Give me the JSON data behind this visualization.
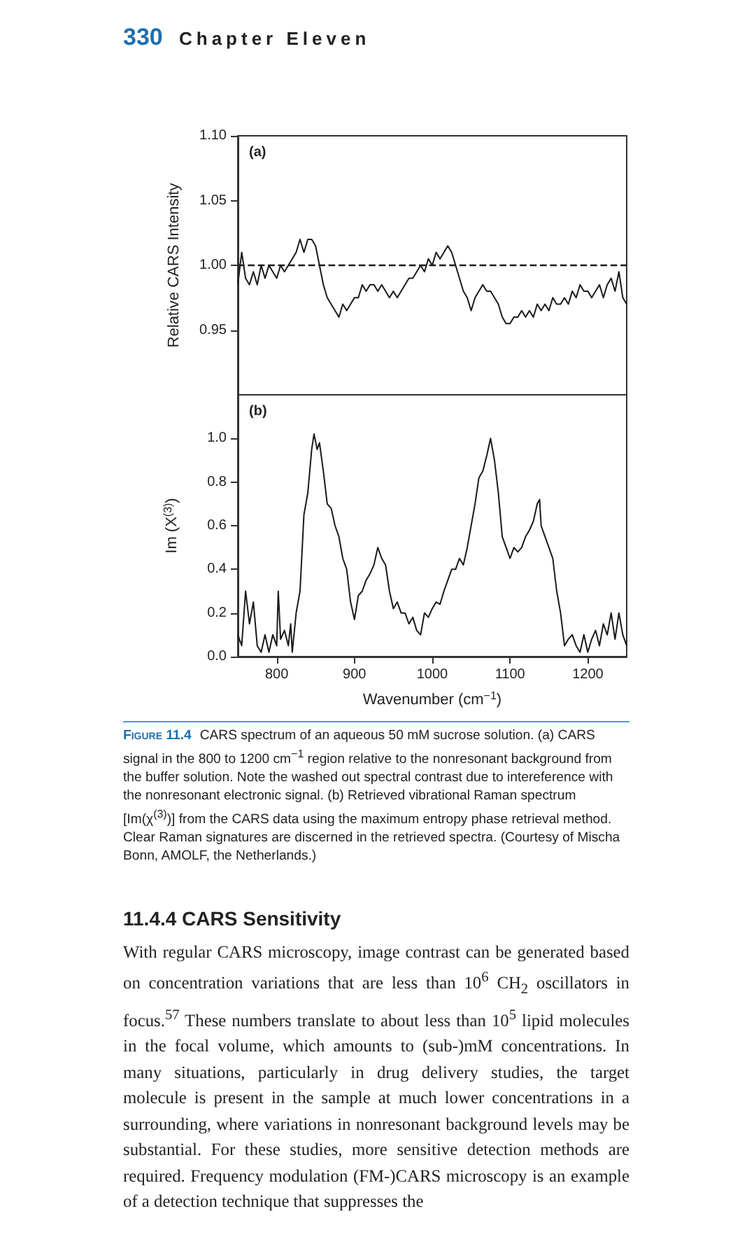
{
  "chart_data": [
    {
      "type": "line",
      "ylabel": "Relative CARS Intensity",
      "marker": "none",
      "color": "#1a1a1a",
      "tick_labels": "y",
      "annotations": [
        "(a)",
        "330",
        "Chapter Eleven"
      ],
      "xlim": [
        750,
        1250
      ],
      "xticks": [
        800,
        900,
        1000,
        1100,
        1200
      ],
      "ylim": [
        0.9,
        1.1
      ],
      "yticks": [
        0.95,
        {
          "value": 1,
          "label": "1.00"
        },
        1.05,
        {
          "value": 1.1,
          "label": "1.10"
        }
      ],
      "ref_lines": [
        {
          "axis": "y",
          "value": 1,
          "line_style": "dashed",
          "color": "#1a1a1a"
        }
      ],
      "x": [
        750,
        755,
        760,
        765,
        770,
        775,
        780,
        785,
        790,
        795,
        800,
        805,
        810,
        815,
        820,
        825,
        830,
        835,
        840,
        845,
        850,
        855,
        860,
        865,
        870,
        875,
        880,
        885,
        890,
        895,
        900,
        905,
        910,
        915,
        920,
        925,
        930,
        935,
        940,
        945,
        950,
        955,
        960,
        965,
        970,
        975,
        980,
        985,
        990,
        995,
        1000,
        1005,
        1010,
        1015,
        1020,
        1025,
        1030,
        1035,
        1040,
        1045,
        1050,
        1055,
        1060,
        1065,
        1070,
        1075,
        1080,
        1085,
        1090,
        1095,
        1100,
        1105,
        1110,
        1115,
        1120,
        1125,
        1130,
        1135,
        1140,
        1145,
        1150,
        1155,
        1160,
        1165,
        1170,
        1175,
        1180,
        1185,
        1190,
        1195,
        1200,
        1205,
        1210,
        1215,
        1220,
        1225,
        1230,
        1235,
        1240,
        1245,
        1250
      ],
      "values": [
        0.985,
        1.01,
        0.99,
        0.985,
        0.995,
        0.985,
        1.0,
        0.99,
        1.0,
        0.995,
        0.99,
        1.0,
        0.995,
        1.0,
        1.005,
        1.01,
        1.02,
        1.01,
        1.02,
        1.02,
        1.015,
        1.0,
        0.985,
        0.975,
        0.97,
        0.965,
        0.96,
        0.97,
        0.965,
        0.97,
        0.975,
        0.975,
        0.985,
        0.98,
        0.985,
        0.985,
        0.98,
        0.985,
        0.98,
        0.975,
        0.98,
        0.975,
        0.98,
        0.985,
        0.99,
        0.99,
        0.995,
        1.0,
        0.995,
        1.005,
        1.0,
        1.01,
        1.005,
        1.01,
        1.015,
        1.01,
        1.0,
        0.99,
        0.98,
        0.975,
        0.965,
        0.975,
        0.98,
        0.985,
        0.98,
        0.98,
        0.975,
        0.97,
        0.96,
        0.955,
        0.955,
        0.96,
        0.96,
        0.965,
        0.96,
        0.965,
        0.96,
        0.97,
        0.965,
        0.97,
        0.965,
        0.975,
        0.97,
        0.97,
        0.975,
        0.97,
        0.98,
        0.975,
        0.985,
        0.98,
        0.98,
        0.975,
        0.98,
        0.985,
        0.975,
        0.985,
        0.99,
        0.98,
        0.995,
        0.975,
        0.97
      ]
    },
    {
      "type": "line",
      "xlabel": "Wavenumber (cm$^{−1}$)",
      "ylabel": "Im (X$^{(3)}$)",
      "marker": "none",
      "color": "#1a1a1a",
      "annotations": [
        "(b)",
        "Figure 11.4",
        "CARS spectrum of an aqueous 50 mM sucrose solution. (a) CARS signal in the 800 to 1200 cm$^{−1}$ region relative to the nonresonant background from the buffer solution. Note the washed out spectral contrast due to intereference with the nonresonant electronic signal. (b) Retrieved vibrational Raman spectrum [Im(χ$^{(3)}$)] from the CARS data using the maximum entropy phase retrieval method. Clear Raman signatures are discerned in the retrieved spectra. (Courtesy of Mischa Bonn, AMOLF, the Netherlands.)",
        "11.4.4 CARS Sensitivity",
        "With regular CARS microscopy, image contrast can be generated based on concentration variations that are less than 10$^{6}$ CH$_{2}$ oscillators in focus.$^{57}$ These numbers translate to about less than 10$^{5}$ lipid molecules in the focal volume, which amounts to (sub-)mM concentrations. In many situations, particularly in drug delivery studies, the target molecule is present in the sample at much lower concentrations in a surrounding, where variations in nonresonant background levels may be substantial. For these studies, more sensitive detection methods are required. Frequency modulation (FM-)CARS microscopy is an example of a detection technique that suppresses the"
      ],
      "xlim": [
        750,
        1250
      ],
      "xticks": [
        800,
        900,
        1000,
        1100,
        1200
      ],
      "ylim": [
        0,
        1.2
      ],
      "yticks": [
        {
          "value": 0,
          "label": "0.0"
        },
        0.2,
        0.4,
        0.6,
        0.8,
        {
          "value": 1,
          "label": "1.0"
        }
      ],
      "x": [
        750,
        755,
        760,
        765,
        770,
        775,
        780,
        785,
        790,
        795,
        800,
        802,
        805,
        810,
        815,
        818,
        820,
        825,
        830,
        835,
        840,
        845,
        848,
        852,
        855,
        860,
        865,
        870,
        875,
        880,
        885,
        890,
        895,
        900,
        905,
        910,
        915,
        920,
        925,
        930,
        935,
        940,
        945,
        950,
        955,
        960,
        965,
        970,
        975,
        980,
        985,
        990,
        995,
        1000,
        1005,
        1010,
        1015,
        1020,
        1025,
        1030,
        1035,
        1040,
        1045,
        1050,
        1055,
        1060,
        1065,
        1070,
        1075,
        1080,
        1085,
        1090,
        1095,
        1100,
        1105,
        1110,
        1115,
        1120,
        1125,
        1130,
        1135,
        1138,
        1140,
        1145,
        1150,
        1155,
        1160,
        1165,
        1170,
        1175,
        1180,
        1185,
        1190,
        1195,
        1200,
        1205,
        1210,
        1215,
        1220,
        1225,
        1230,
        1235,
        1240,
        1245,
        1250
      ],
      "values": [
        0.1,
        0.05,
        0.3,
        0.15,
        0.25,
        0.05,
        0.02,
        0.1,
        0.02,
        0.1,
        0.05,
        0.3,
        0.08,
        0.12,
        0.05,
        0.15,
        0.02,
        0.2,
        0.3,
        0.65,
        0.75,
        0.95,
        1.02,
        0.95,
        0.98,
        0.85,
        0.7,
        0.68,
        0.6,
        0.55,
        0.45,
        0.4,
        0.25,
        0.17,
        0.28,
        0.3,
        0.35,
        0.38,
        0.42,
        0.5,
        0.45,
        0.42,
        0.3,
        0.22,
        0.25,
        0.2,
        0.2,
        0.15,
        0.18,
        0.12,
        0.1,
        0.2,
        0.18,
        0.22,
        0.25,
        0.24,
        0.3,
        0.35,
        0.4,
        0.4,
        0.45,
        0.42,
        0.5,
        0.6,
        0.7,
        0.82,
        0.85,
        0.92,
        1.0,
        0.9,
        0.75,
        0.55,
        0.5,
        0.45,
        0.5,
        0.48,
        0.5,
        0.55,
        0.58,
        0.62,
        0.7,
        0.72,
        0.6,
        0.55,
        0.5,
        0.45,
        0.3,
        0.2,
        0.05,
        0.08,
        0.1,
        0.05,
        0.02,
        0.1,
        0.02,
        0.08,
        0.12,
        0.05,
        0.15,
        0.1,
        0.2,
        0.08,
        0.2,
        0.1,
        0.05
      ]
    }
  ]
}
